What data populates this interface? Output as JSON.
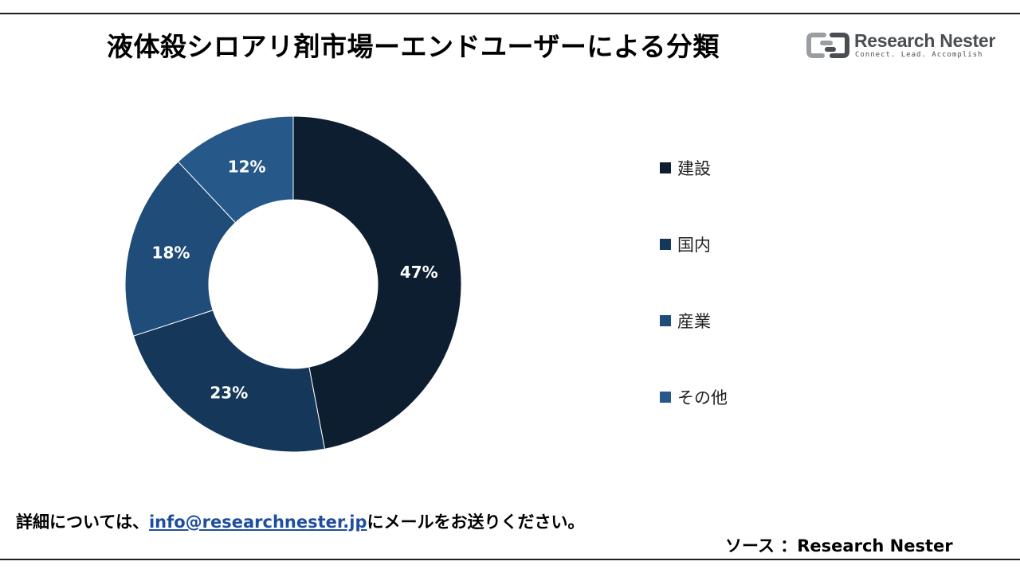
{
  "title": "液体殺シロアリ剤市場ーエンドユーザーによる分類",
  "logo": {
    "name": "Research Nester",
    "tagline": "Connect. Lead. Accomplish",
    "icon": "research-nester-logo-icon"
  },
  "chart_data": {
    "type": "pie",
    "donut": true,
    "categories": [
      "建設",
      "国内",
      "産業",
      "その他"
    ],
    "values": [
      47,
      23,
      18,
      12
    ],
    "value_labels": [
      "47%",
      "23%",
      "18%",
      "12%"
    ],
    "colors": [
      "#0d1e30",
      "#15375a",
      "#1f4c78",
      "#26588a"
    ],
    "legend_position": "right",
    "title": ""
  },
  "footer": {
    "prefix": "詳細については、",
    "email": "info@researchnester.jp",
    "suffix": "にメールをお送りください。"
  },
  "source": "ソース ：Research Nester"
}
